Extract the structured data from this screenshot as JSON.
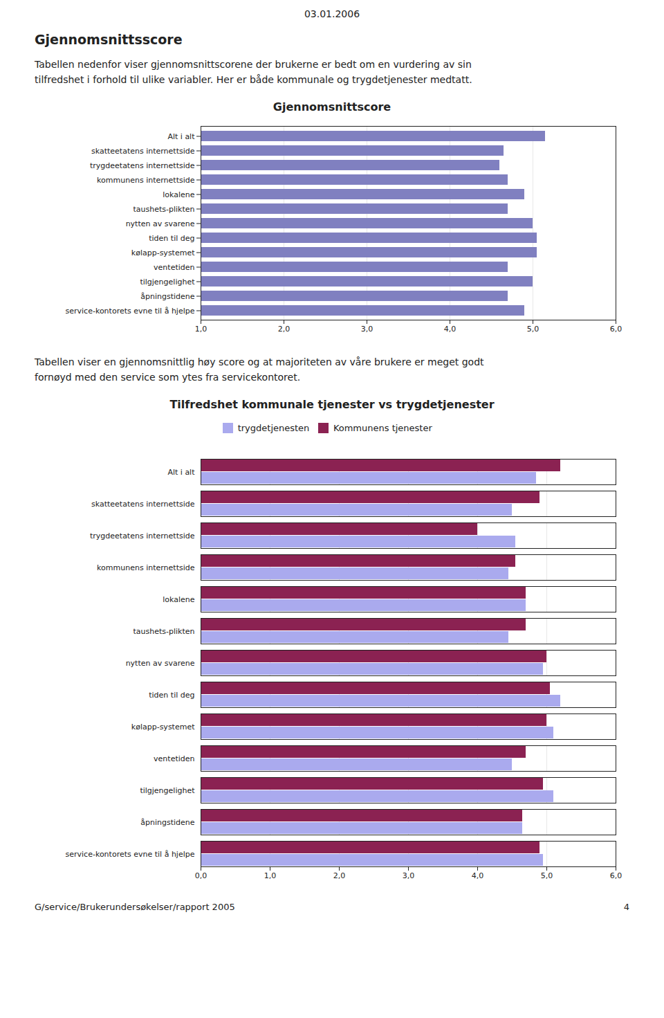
{
  "chart_data": [
    {
      "type": "bar",
      "orientation": "horizontal",
      "title": "Gjennomsnittscore",
      "annotations": [
        "03.01.2006",
        "Gjennomsnittsscore",
        "Tabellen nedenfor viser gjennomsnittscorene der brukerne er bedt om en vurdering av sin",
        "tilfredshet i forhold til ulike variabler. Her er både kommunale og trygdetjenester medtatt."
      ],
      "categories": [
        "Alt i alt",
        "skatteetatens internettside",
        "trygdeetatens internettside",
        "kommunens internettside",
        "lokalene",
        "taushets-plikten",
        "nytten av svarene",
        "tiden til deg",
        "kølapp-systemet",
        "ventetiden",
        "tilgjengelighet",
        "åpningstidene",
        "service-kontorets evne til å hjelpe"
      ],
      "values": [
        5.15,
        4.65,
        4.6,
        4.7,
        4.9,
        4.7,
        5.0,
        5.05,
        5.05,
        4.7,
        5.0,
        4.7,
        4.9
      ],
      "color": "#8080C0",
      "xlim": [
        1.0,
        6.0
      ],
      "xticks": [
        {
          "value": 1.0,
          "label": "1,0"
        },
        {
          "value": 2.0,
          "label": "2,0"
        },
        {
          "value": 3.0,
          "label": "3,0"
        },
        {
          "value": 4.0,
          "label": "4,0"
        },
        {
          "value": 5.0,
          "label": "5,0"
        },
        {
          "value": 6.0,
          "label": "6,0"
        }
      ],
      "grid": true
    },
    {
      "type": "bar",
      "orientation": "horizontal",
      "title": "Tilfredshet kommunale tjenester vs trygdetjenester",
      "annotations": [
        "Tabellen viser en gjennomsnittlig  høy score og at majoriteten av våre brukere er meget godt",
        "fornøyd  med den service som ytes fra servicekontoret.",
        "G/service/Brukerundersøkelser/rapport 2005",
        "4"
      ],
      "categories": [
        "Alt i alt",
        "skatteetatens internettside",
        "trygdeetatens internettside",
        "kommunens internettside",
        "lokalene",
        "taushets-plikten",
        "nytten av svarene",
        "tiden til deg",
        "kølapp-systemet",
        "ventetiden",
        "tilgjengelighet",
        "åpningstidene",
        "service-kontorets evne til å hjelpe"
      ],
      "series": [
        {
          "name": "trygdetjenesten",
          "color": "#AAAAEE",
          "values": [
            4.85,
            4.5,
            4.55,
            4.45,
            4.7,
            4.45,
            4.95,
            5.2,
            5.1,
            4.5,
            5.1,
            4.65,
            4.95
          ]
        },
        {
          "name": "Kommunens tjenester",
          "color": "#8B2252",
          "values": [
            5.2,
            4.9,
            4.0,
            4.55,
            4.7,
            4.7,
            5.0,
            5.05,
            5.0,
            4.7,
            4.95,
            4.65,
            4.9
          ]
        }
      ],
      "xlim": [
        0.0,
        6.0
      ],
      "xticks": [
        {
          "value": 0.0,
          "label": "0,0"
        },
        {
          "value": 1.0,
          "label": "1,0"
        },
        {
          "value": 2.0,
          "label": "2,0"
        },
        {
          "value": 3.0,
          "label": "3,0"
        },
        {
          "value": 4.0,
          "label": "4,0"
        },
        {
          "value": 5.0,
          "label": "5,0"
        },
        {
          "value": 6.0,
          "label": "6,0"
        }
      ],
      "grid": true,
      "legend": "top"
    }
  ]
}
